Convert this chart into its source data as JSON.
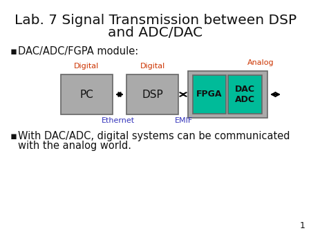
{
  "title_line1": "Lab. 7 Signal Transmission between DSP",
  "title_line2": "and ADC/DAC",
  "title_fontsize": 14.5,
  "background_color": "#ffffff",
  "bullet1": "DAC/ADC/FGPA module:",
  "bullet2_line1": "With DAC/ADC, digital systems can be communicated",
  "bullet2_line2": "with the analog world.",
  "bullet_fontsize": 10.5,
  "label_digital1": "Digital",
  "label_digital2": "Digital",
  "label_analog": "Analog",
  "label_ethernet": "Ethernet",
  "label_emif": "EMIF",
  "label_color_orange": "#CC3300",
  "label_color_blue": "#3333BB",
  "box_pc_label": "PC",
  "box_dsp_label": "DSP",
  "box_fpga_label": "FPGA",
  "box_dac_label": "DAC\nADC",
  "box_gray": "#AAAAAA",
  "box_teal": "#00BB99",
  "box_outline": "#666666",
  "text_color": "#111111",
  "page_number": "1"
}
